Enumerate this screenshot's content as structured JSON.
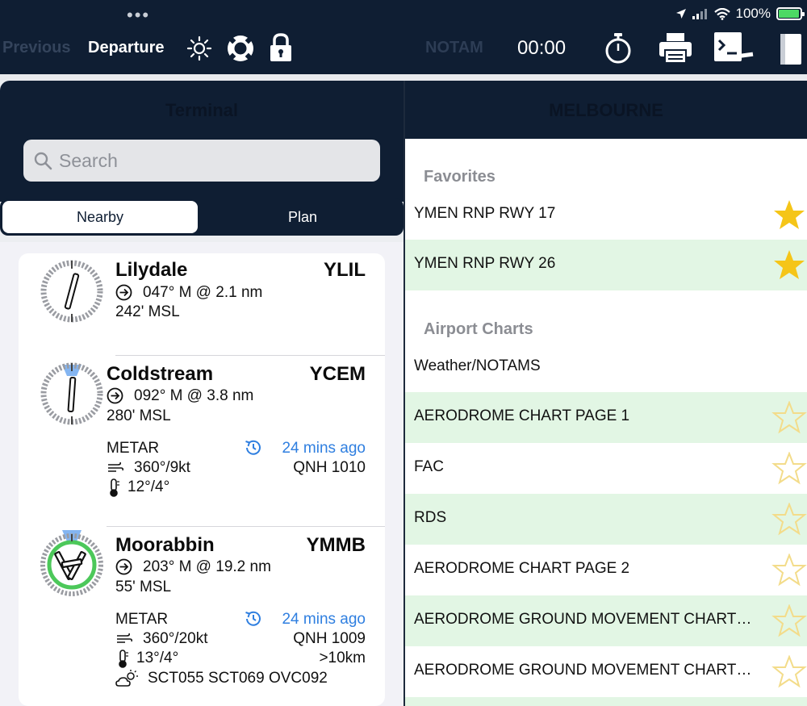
{
  "status_bar": {
    "battery": "100%"
  },
  "toolbar": {
    "previous": "Previous",
    "departure": "Departure",
    "notam": "NOTAM",
    "timer": "00:00"
  },
  "terminal": {
    "title": "Terminal",
    "search_placeholder": "Search",
    "segments": [
      "Nearby",
      "Plan"
    ]
  },
  "airports": [
    {
      "name": "Lilydale",
      "code": "YLIL",
      "bearing": "047° M @ 2.1 nm",
      "elevation": "242' MSL"
    },
    {
      "name": "Coldstream",
      "code": "YCEM",
      "bearing": "092° M @ 3.8 nm",
      "elevation": "280' MSL",
      "metar_label": "METAR",
      "age": "24 mins ago",
      "wind": "360°/9kt",
      "qnh": "QNH 1010",
      "temp": "12°/4°"
    },
    {
      "name": "Moorabbin",
      "code": "YMMB",
      "bearing": "203° M @ 19.2 nm",
      "elevation": "55' MSL",
      "metar_label": "METAR",
      "age": "24 mins ago",
      "wind": "360°/20kt",
      "qnh": "QNH 1009",
      "temp": "13°/4°",
      "visibility": ">10km",
      "clouds": "SCT055 SCT069 OVC092"
    }
  ],
  "charts": {
    "title": "MELBOURNE",
    "favorites_header": "Favorites",
    "favorites": [
      {
        "label": "YMEN RNP RWY 17",
        "starred": true
      },
      {
        "label": "YMEN RNP RWY 26",
        "starred": true
      }
    ],
    "airport_header": "Airport Charts",
    "airport_charts": [
      {
        "label": "Weather/NOTAMS"
      },
      {
        "label": "AERODROME CHART PAGE 1"
      },
      {
        "label": "FAC"
      },
      {
        "label": "RDS"
      },
      {
        "label": "AERODROME CHART PAGE 2"
      },
      {
        "label": "AERODROME GROUND MOVEMENT CHART…"
      },
      {
        "label": "AERODROME GROUND MOVEMENT CHART…"
      }
    ]
  },
  "colors": {
    "navy": "#0f1e33",
    "accent_blue": "#2f7fe0",
    "star_gold": "#f5c518",
    "row_green": "#e2f6e4"
  }
}
